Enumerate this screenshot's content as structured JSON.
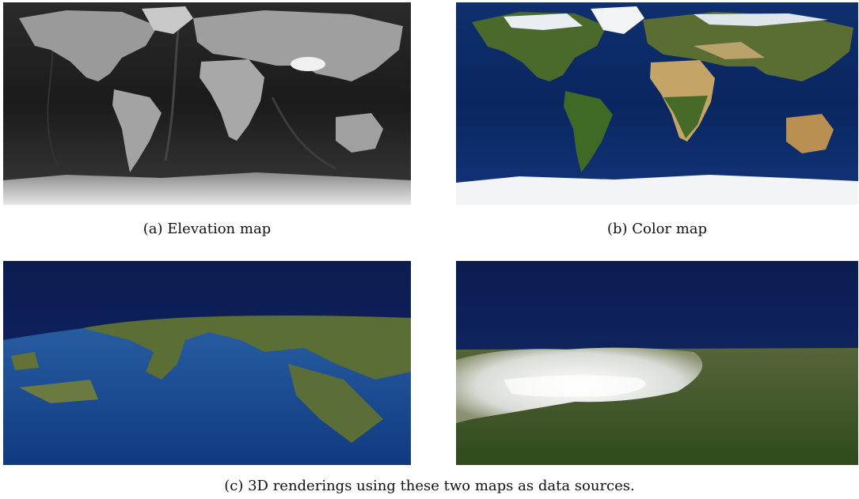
{
  "figure": {
    "panels": [
      {
        "id": "a",
        "caption": "(a)  Elevation map",
        "image": "grayscale world elevation map"
      },
      {
        "id": "b",
        "caption": "(b)  Color map",
        "image": "satellite color world map"
      },
      {
        "id": "c1",
        "image": "3D rendering of Italy and Balkans from orbit"
      },
      {
        "id": "c2",
        "image": "3D rendering of snowy mountain terrain"
      }
    ],
    "caption_c": "(c)  3D renderings using these two maps as data sources."
  },
  "colors": {
    "ocean_gray": "#1f1f1f",
    "land_gray": "#9a9a9a",
    "ocean_blue": "#0b2a66",
    "land_green": "#4f6a2e",
    "desert": "#b89a5e",
    "ice": "#eef2f6",
    "space": "#0c1e55"
  }
}
